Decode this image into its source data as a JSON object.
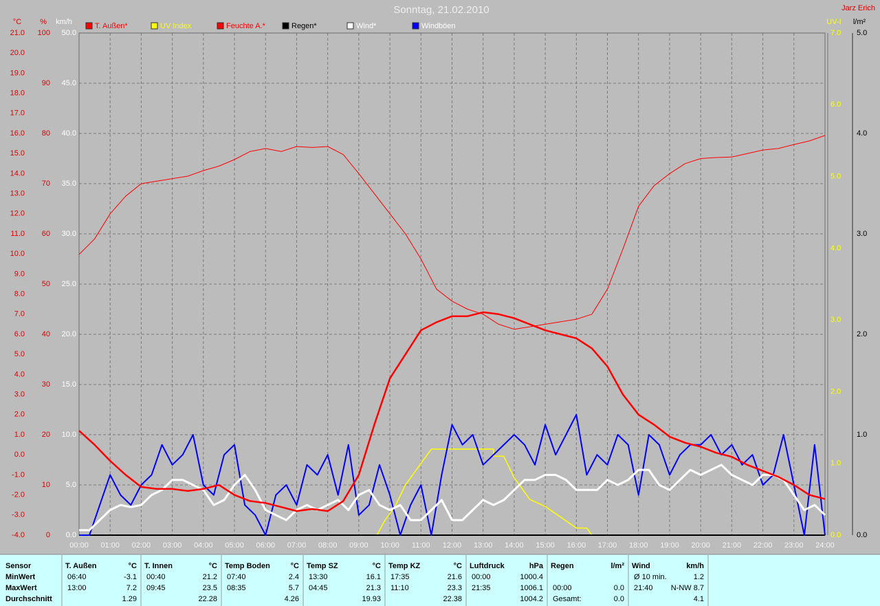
{
  "chart_data": {
    "type": "line",
    "title": "Sonntag, 21.02.2010",
    "author": "Jarz Erich",
    "xlim": [
      0,
      1440
    ],
    "xticks": [
      {
        "value": 0,
        "label": "00:00"
      },
      {
        "value": 60,
        "label": "01:00"
      },
      {
        "value": 120,
        "label": "02:00"
      },
      {
        "value": 180,
        "label": "03:00"
      },
      {
        "value": 240,
        "label": "04:00"
      },
      {
        "value": 300,
        "label": "05:00"
      },
      {
        "value": 360,
        "label": "06:00"
      },
      {
        "value": 420,
        "label": "07:00"
      },
      {
        "value": 480,
        "label": "08:00"
      },
      {
        "value": 540,
        "label": "09:00"
      },
      {
        "value": 600,
        "label": "10:00"
      },
      {
        "value": 660,
        "label": "11:00"
      },
      {
        "value": 720,
        "label": "12:00"
      },
      {
        "value": 780,
        "label": "13:00"
      },
      {
        "value": 840,
        "label": "14:00"
      },
      {
        "value": 900,
        "label": "15:00"
      },
      {
        "value": 960,
        "label": "16:00"
      },
      {
        "value": 1020,
        "label": "17:00"
      },
      {
        "value": 1080,
        "label": "18:00"
      },
      {
        "value": 1140,
        "label": "19:00"
      },
      {
        "value": 1200,
        "label": "20:00"
      },
      {
        "value": 1260,
        "label": "21:00"
      },
      {
        "value": 1320,
        "label": "22:00"
      },
      {
        "value": 1380,
        "label": "23:00"
      },
      {
        "value": 1440,
        "label": "24:00"
      }
    ],
    "x_grid": true,
    "axes": [
      {
        "id": "temp",
        "label": "°C",
        "color": "#e00000",
        "ylim": [
          -4,
          21
        ],
        "ticks": [
          {
            "value": -4,
            "label": "-4.0"
          },
          {
            "value": -3,
            "label": "-3.0"
          },
          {
            "value": -2,
            "label": "-2.0"
          },
          {
            "value": -1,
            "label": "-1.0"
          },
          {
            "value": 0,
            "label": "0.0"
          },
          {
            "value": 1,
            "label": "1.0"
          },
          {
            "value": 2,
            "label": "2.0"
          },
          {
            "value": 3,
            "label": "3.0"
          },
          {
            "value": 4,
            "label": "4.0"
          },
          {
            "value": 5,
            "label": "5.0"
          },
          {
            "value": 6,
            "label": "6.0"
          },
          {
            "value": 7,
            "label": "7.0"
          },
          {
            "value": 8,
            "label": "8.0"
          },
          {
            "value": 9,
            "label": "9.0"
          },
          {
            "value": 10,
            "label": "10.0"
          },
          {
            "value": 11,
            "label": "11.0"
          },
          {
            "value": 12,
            "label": "12.0"
          },
          {
            "value": 13,
            "label": "13.0"
          },
          {
            "value": 14,
            "label": "14.0"
          },
          {
            "value": 15,
            "label": "15.0"
          },
          {
            "value": 16,
            "label": "16.0"
          },
          {
            "value": 17,
            "label": "17.0"
          },
          {
            "value": 18,
            "label": "18.0"
          },
          {
            "value": 19,
            "label": "19.0"
          },
          {
            "value": 20,
            "label": "20.0"
          },
          {
            "value": 21,
            "label": "21.0"
          }
        ],
        "grid": false
      },
      {
        "id": "hum",
        "label": "%",
        "color": "#e00000",
        "ylim": [
          0,
          100
        ],
        "ticks": [
          0,
          10,
          20,
          30,
          40,
          50,
          60,
          70,
          80,
          90,
          100
        ],
        "grid": false
      },
      {
        "id": "wind",
        "label": "km/h",
        "color": "#ffffff",
        "ylim": [
          0,
          50
        ],
        "ticks": [
          {
            "value": 0,
            "label": "0.0"
          },
          {
            "value": 5,
            "label": "5.0"
          },
          {
            "value": 10,
            "label": "10.0"
          },
          {
            "value": 15,
            "label": "15.0"
          },
          {
            "value": 20,
            "label": "20.0"
          },
          {
            "value": 25,
            "label": "25.0"
          },
          {
            "value": 30,
            "label": "30.0"
          },
          {
            "value": 35,
            "label": "35.0"
          },
          {
            "value": 40,
            "label": "40.0"
          },
          {
            "value": 45,
            "label": "45.0"
          },
          {
            "value": 50,
            "label": "50.0"
          }
        ],
        "grid": true
      },
      {
        "id": "uv",
        "label": "UV-I",
        "color": "#ffff00",
        "ylim": [
          0,
          7
        ],
        "ticks": [
          {
            "value": 0,
            "label": "0.0"
          },
          {
            "value": 1,
            "label": "1.0"
          },
          {
            "value": 2,
            "label": "2.0"
          },
          {
            "value": 3,
            "label": "3.0"
          },
          {
            "value": 4,
            "label": "4.0"
          },
          {
            "value": 5,
            "label": "5.0"
          },
          {
            "value": 6,
            "label": "6.0"
          },
          {
            "value": 7,
            "label": "7.0"
          }
        ],
        "grid": false
      },
      {
        "id": "rain",
        "label": "l/m²",
        "color": "#000000",
        "ylim": [
          0,
          5
        ],
        "ticks": [
          {
            "value": 0,
            "label": "0.0"
          },
          {
            "value": 1,
            "label": "1.0"
          },
          {
            "value": 2,
            "label": "2.0"
          },
          {
            "value": 3,
            "label": "3.0"
          },
          {
            "value": 4,
            "label": "4.0"
          },
          {
            "value": 5,
            "label": "5.0"
          }
        ],
        "grid": false
      }
    ],
    "series": [
      {
        "name": "T. Außen*",
        "color": "#ff0000",
        "legend_text_color": "#ff0000",
        "width": 2.5,
        "axis": "temp",
        "x": [
          0,
          30,
          60,
          90,
          120,
          150,
          180,
          210,
          240,
          270,
          300,
          330,
          360,
          390,
          420,
          450,
          480,
          510,
          540,
          570,
          600,
          630,
          660,
          690,
          720,
          750,
          780,
          810,
          840,
          870,
          900,
          930,
          960,
          990,
          1020,
          1050,
          1080,
          1110,
          1140,
          1170,
          1200,
          1230,
          1260,
          1290,
          1320,
          1350,
          1380,
          1410,
          1440
        ],
        "values": [
          1.2,
          0.5,
          -0.3,
          -1.0,
          -1.6,
          -1.7,
          -1.7,
          -1.8,
          -1.7,
          -1.5,
          -2.0,
          -2.3,
          -2.4,
          -2.6,
          -2.8,
          -2.7,
          -2.8,
          -2.3,
          -1.0,
          1.5,
          3.8,
          5.0,
          6.2,
          6.6,
          6.9,
          6.9,
          7.1,
          7.0,
          6.8,
          6.5,
          6.2,
          6.0,
          5.8,
          5.3,
          4.4,
          3.0,
          2.0,
          1.5,
          0.9,
          0.6,
          0.4,
          0.1,
          -0.1,
          -0.5,
          -0.8,
          -1.1,
          -1.5,
          -2.0,
          -2.2
        ]
      },
      {
        "name": "UV Index",
        "color": "#ffff00",
        "legend_text_color": "#ffff00",
        "width": 1.5,
        "axis": "uv",
        "x": [
          0,
          575,
          590,
          610,
          630,
          650,
          670,
          680,
          800,
          800,
          820,
          840,
          850,
          870,
          900,
          920,
          940,
          960,
          980,
          990,
          1440
        ],
        "values": [
          0,
          0,
          0.2,
          0.4,
          0.7,
          0.9,
          1.1,
          1.2,
          1.2,
          1.1,
          1.1,
          0.8,
          0.7,
          0.5,
          0.4,
          0.3,
          0.2,
          0.1,
          0.1,
          0,
          0
        ]
      },
      {
        "name": "Feuchte A.*",
        "color": "#ff0000",
        "legend_text_color": "#ff0000",
        "width": 1,
        "axis": "hum",
        "x": [
          0,
          30,
          60,
          90,
          120,
          150,
          180,
          210,
          240,
          270,
          300,
          330,
          360,
          390,
          420,
          450,
          480,
          510,
          540,
          570,
          600,
          630,
          660,
          690,
          720,
          750,
          780,
          810,
          840,
          870,
          900,
          930,
          960,
          990,
          1020,
          1050,
          1080,
          1110,
          1140,
          1170,
          1200,
          1230,
          1260,
          1290,
          1320,
          1350,
          1380,
          1410,
          1440
        ],
        "values": [
          55.9,
          59,
          64,
          67.5,
          70,
          70.5,
          71,
          71.5,
          72.6,
          73.5,
          74.8,
          76.4,
          77,
          76.4,
          77.4,
          77.2,
          77.4,
          75.8,
          72,
          68,
          64,
          60,
          55,
          49,
          46.6,
          45,
          44,
          42,
          41,
          41.5,
          42,
          42.5,
          43,
          44,
          49,
          57,
          65.5,
          69.6,
          72,
          74,
          75,
          75.2,
          75.3,
          76,
          76.7,
          77,
          77.8,
          78.5,
          79.6
        ]
      },
      {
        "name": "Regen*",
        "color": "#000000",
        "legend_text_color": "#000000",
        "width": 2,
        "axis": "rain",
        "x": [
          0,
          1440
        ],
        "values": [
          0,
          0
        ]
      },
      {
        "name": "Wind*",
        "color": "#ffffff",
        "legend_text_color": "#ffffff",
        "width": 3,
        "axis": "wind",
        "x": [
          0,
          20,
          40,
          60,
          80,
          100,
          120,
          140,
          160,
          180,
          200,
          220,
          240,
          260,
          280,
          300,
          320,
          340,
          360,
          380,
          400,
          420,
          440,
          460,
          480,
          500,
          520,
          540,
          560,
          580,
          600,
          620,
          640,
          660,
          680,
          700,
          720,
          740,
          760,
          780,
          800,
          820,
          840,
          860,
          880,
          900,
          920,
          940,
          960,
          980,
          1000,
          1020,
          1040,
          1060,
          1080,
          1100,
          1120,
          1140,
          1160,
          1180,
          1200,
          1220,
          1240,
          1260,
          1280,
          1300,
          1320,
          1340,
          1360,
          1380,
          1400,
          1420,
          1440
        ],
        "values": [
          0.5,
          0.5,
          1.5,
          2.5,
          3.0,
          2.8,
          3.0,
          4.0,
          4.5,
          5.5,
          5.5,
          5.0,
          4.5,
          3.0,
          3.5,
          5.0,
          6.0,
          4.5,
          2.5,
          2.0,
          1.5,
          2.5,
          3.0,
          2.5,
          3.0,
          3.5,
          2.5,
          4.0,
          4.5,
          3.0,
          2.5,
          3.0,
          1.5,
          1.5,
          2.5,
          3.5,
          1.5,
          1.5,
          2.5,
          3.5,
          3.0,
          3.5,
          4.5,
          5.5,
          5.5,
          6.0,
          6.0,
          5.5,
          4.5,
          4.5,
          4.5,
          5.5,
          5.0,
          5.5,
          6.5,
          6.5,
          5.0,
          4.5,
          5.5,
          6.5,
          6.0,
          6.5,
          7.0,
          6.0,
          5.5,
          5.0,
          6.0,
          6.0,
          5.5,
          4.0,
          2.5,
          3.0,
          2.0
        ]
      },
      {
        "name": "Windböen",
        "color": "#0000ff",
        "legend_text_color": "#ffffff",
        "width": 2,
        "axis": "wind",
        "x": [
          0,
          20,
          40,
          60,
          80,
          100,
          120,
          140,
          160,
          180,
          200,
          220,
          240,
          260,
          280,
          300,
          320,
          340,
          360,
          380,
          400,
          420,
          440,
          460,
          480,
          500,
          520,
          540,
          560,
          580,
          600,
          620,
          640,
          660,
          680,
          700,
          720,
          740,
          760,
          780,
          800,
          820,
          840,
          860,
          880,
          900,
          920,
          940,
          960,
          980,
          1000,
          1020,
          1040,
          1060,
          1080,
          1100,
          1120,
          1140,
          1160,
          1180,
          1200,
          1220,
          1240,
          1260,
          1280,
          1300,
          1320,
          1340,
          1360,
          1380,
          1400,
          1420,
          1440
        ],
        "values": [
          0,
          0,
          3,
          6,
          4,
          3,
          5,
          6,
          9,
          7,
          8,
          10,
          5,
          4,
          8,
          9,
          3,
          2,
          0,
          4,
          5,
          3,
          7,
          6,
          8,
          4,
          9,
          2,
          3,
          7,
          4,
          0,
          3,
          5,
          0,
          6,
          11,
          9,
          10,
          7,
          8,
          9,
          10,
          9,
          7,
          11,
          8,
          10,
          12,
          6,
          8,
          7,
          10,
          9,
          4,
          10,
          9,
          6,
          8,
          9,
          9,
          10,
          8,
          9,
          7,
          8,
          5,
          6,
          10,
          5,
          0,
          9,
          0
        ]
      }
    ]
  },
  "table": {
    "header": "Sensor",
    "row_labels": [
      "MinWert",
      "MaxWert",
      "Durchschnitt"
    ],
    "columns": [
      {
        "name": "T. Außen",
        "unit": "°C",
        "rows": [
          [
            "06:40",
            "-3.1"
          ],
          [
            "13:00",
            "7.2"
          ],
          [
            null,
            "1.29"
          ]
        ]
      },
      {
        "name": "T. Innen",
        "unit": "°C",
        "rows": [
          [
            "00:40",
            "21.2"
          ],
          [
            "09:45",
            "23.5"
          ],
          [
            null,
            "22.28"
          ]
        ]
      },
      {
        "name": "Temp Boden",
        "unit": "°C",
        "rows": [
          [
            "07:40",
            "2.4"
          ],
          [
            "08:35",
            "5.7"
          ],
          [
            null,
            "4.26"
          ]
        ]
      },
      {
        "name": "Temp SZ",
        "unit": "°C",
        "rows": [
          [
            "13:30",
            "16.1"
          ],
          [
            "04:45",
            "21.3"
          ],
          [
            null,
            "19.93"
          ]
        ]
      },
      {
        "name": "Temp KZ",
        "unit": "°C",
        "rows": [
          [
            "17:35",
            "21.6"
          ],
          [
            "11:10",
            "23.3"
          ],
          [
            null,
            "22.38"
          ]
        ]
      },
      {
        "name": "Luftdruck",
        "unit": "hPa",
        "rows": [
          [
            "00:00",
            "1000.4"
          ],
          [
            "21:35",
            "1006.1"
          ],
          [
            null,
            "1004.2"
          ]
        ]
      },
      {
        "name": "Regen",
        "unit": "l/m²",
        "rows": [
          [
            null,
            null
          ],
          [
            "00:00",
            "0.0"
          ],
          [
            "Gesamt:",
            "0.0"
          ]
        ]
      },
      {
        "name": "Wind",
        "unit": "km/h",
        "rows": [
          [
            "Ø 10 min.",
            "1.2"
          ],
          [
            "21:40",
            "N-NW 8.7"
          ],
          [
            null,
            "4.1"
          ]
        ]
      }
    ]
  }
}
